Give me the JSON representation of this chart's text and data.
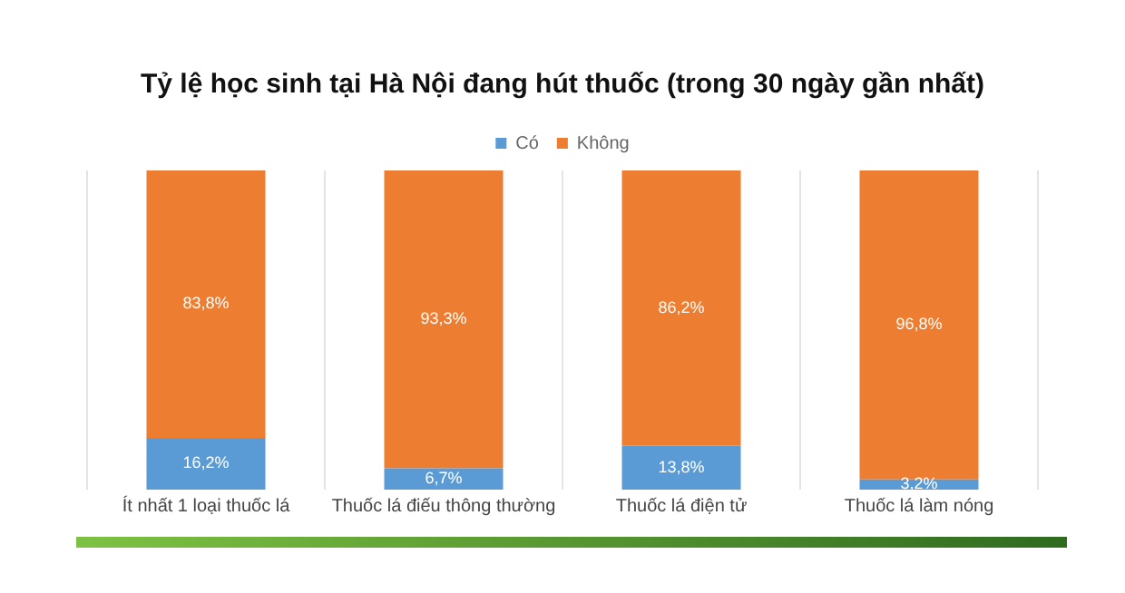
{
  "chart_data": {
    "type": "bar",
    "title": "Tỷ lệ học sinh tại Hà Nội đang hút thuốc (trong 30 ngày gần nhất)",
    "categories": [
      "Ít nhất 1 loại thuốc lá",
      "Thuốc lá điếu thông thường",
      "Thuốc lá điện tử",
      "Thuốc lá làm nóng"
    ],
    "series": [
      {
        "name": "Có",
        "color": "#5b9bd5",
        "values": [
          16.2,
          6.7,
          13.8,
          3.2
        ],
        "value_labels": [
          "16,2%",
          "6,7%",
          "13,8%",
          "3,2%"
        ]
      },
      {
        "name": "Không",
        "color": "#ed7d31",
        "values": [
          83.8,
          93.3,
          86.2,
          96.8
        ],
        "value_labels": [
          "83,8%",
          "93,3%",
          "86,2%",
          "96,8%"
        ]
      }
    ],
    "stacked": true,
    "grid": "x",
    "legend": "top"
  }
}
